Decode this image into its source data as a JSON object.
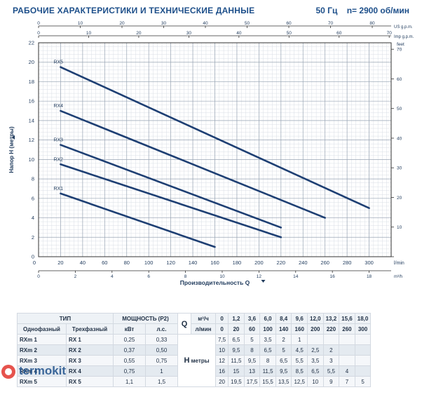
{
  "header": {
    "title": "РАБОЧИЕ ХАРАКТЕРИСТИКИ И ТЕХНИЧЕСКИЕ ДАННЫЕ",
    "frequency": "50 Гц",
    "speed": "n= 2900 об/мин"
  },
  "chart_data": {
    "type": "line",
    "ylabel": "Напор H (метры)",
    "xlabel": "Производительность Q",
    "xlim": [
      0,
      320
    ],
    "ylim": [
      0,
      22
    ],
    "grid": true,
    "x_ticks": [
      0,
      20,
      40,
      60,
      80,
      100,
      120,
      140,
      160,
      180,
      200,
      220,
      240,
      260,
      280,
      300
    ],
    "x_unit": "l/min",
    "y_ticks": [
      0,
      2,
      4,
      6,
      8,
      10,
      12,
      14,
      16,
      18,
      20,
      22
    ],
    "m3h_ticks": [
      0,
      2,
      4,
      6,
      8,
      10,
      12,
      14,
      16,
      18
    ],
    "m3h_unit": "m³/h",
    "us_gpm_ticks": [
      0,
      10,
      20,
      30,
      40,
      50,
      60,
      70,
      80
    ],
    "us_gpm_unit": "US g.p.m.",
    "imp_gpm_ticks": [
      0,
      10,
      20,
      30,
      40,
      50,
      60,
      70
    ],
    "imp_gpm_unit": "Imp g.p.m.",
    "feet_ticks": [
      0,
      10,
      20,
      30,
      40,
      50,
      60,
      70
    ],
    "feet_unit": "feet",
    "series": [
      {
        "name": "RX5",
        "color": "#1e3f73",
        "x": [
          20,
          300
        ],
        "y": [
          19.5,
          5
        ]
      },
      {
        "name": "RX4",
        "color": "#1e3f73",
        "x": [
          20,
          260
        ],
        "y": [
          15,
          4
        ]
      },
      {
        "name": "RX3",
        "color": "#1e3f73",
        "x": [
          20,
          220
        ],
        "y": [
          11.5,
          3
        ]
      },
      {
        "name": "RX2",
        "color": "#1e3f73",
        "x": [
          20,
          220
        ],
        "y": [
          9.5,
          2
        ]
      },
      {
        "name": "RX1",
        "color": "#1e3f73",
        "x": [
          20,
          160
        ],
        "y": [
          6.5,
          1
        ]
      }
    ]
  },
  "table": {
    "head1": {
      "type": "ТИП",
      "power": "МОЩНОСТЬ (P2)",
      "q": "Q",
      "unit_m3h": "м³/ч",
      "m3h": [
        "0",
        "1,2",
        "3,6",
        "6,0",
        "8,4",
        "9,6",
        "12,0",
        "13,2",
        "15,6",
        "18,0"
      ]
    },
    "head2": {
      "single": "Однофазный",
      "three": "Трехфазный",
      "kw": "кВт",
      "hp": "л.с.",
      "unit_lmin": "л/мин",
      "lmin": [
        "0",
        "20",
        "60",
        "100",
        "140",
        "160",
        "200",
        "220",
        "260",
        "300"
      ]
    },
    "h_label": "H",
    "h_unit": "метры",
    "rows": [
      {
        "single": "RXm 1",
        "three": "RX 1",
        "kw": "0,25",
        "hp": "0,33",
        "h": [
          "7,5",
          "6,5",
          "5",
          "3,5",
          "2",
          "1",
          "",
          "",
          "",
          ""
        ]
      },
      {
        "single": "RXm 2",
        "three": "RX 2",
        "kw": "0,37",
        "hp": "0,50",
        "h": [
          "10",
          "9,5",
          "8",
          "6,5",
          "5",
          "4,5",
          "2,5",
          "2",
          "",
          ""
        ]
      },
      {
        "single": "RXm 3",
        "three": "RX 3",
        "kw": "0,55",
        "hp": "0,75",
        "h": [
          "12",
          "11,5",
          "9,5",
          "8",
          "6,5",
          "5,5",
          "3,5",
          "3",
          "",
          ""
        ]
      },
      {
        "single": "RXm 4",
        "three": "RX 4",
        "kw": "0,75",
        "hp": "1",
        "h": [
          "16",
          "15",
          "13",
          "11,5",
          "9,5",
          "8,5",
          "6,5",
          "5,5",
          "4",
          ""
        ]
      },
      {
        "single": "RXm 5",
        "three": "RX 5",
        "kw": "1,1",
        "hp": "1,5",
        "h": [
          "20",
          "19,5",
          "17,5",
          "15,5",
          "13,5",
          "12,5",
          "10",
          "9",
          "7",
          "5"
        ]
      }
    ]
  },
  "watermark": {
    "text": "termokit"
  }
}
